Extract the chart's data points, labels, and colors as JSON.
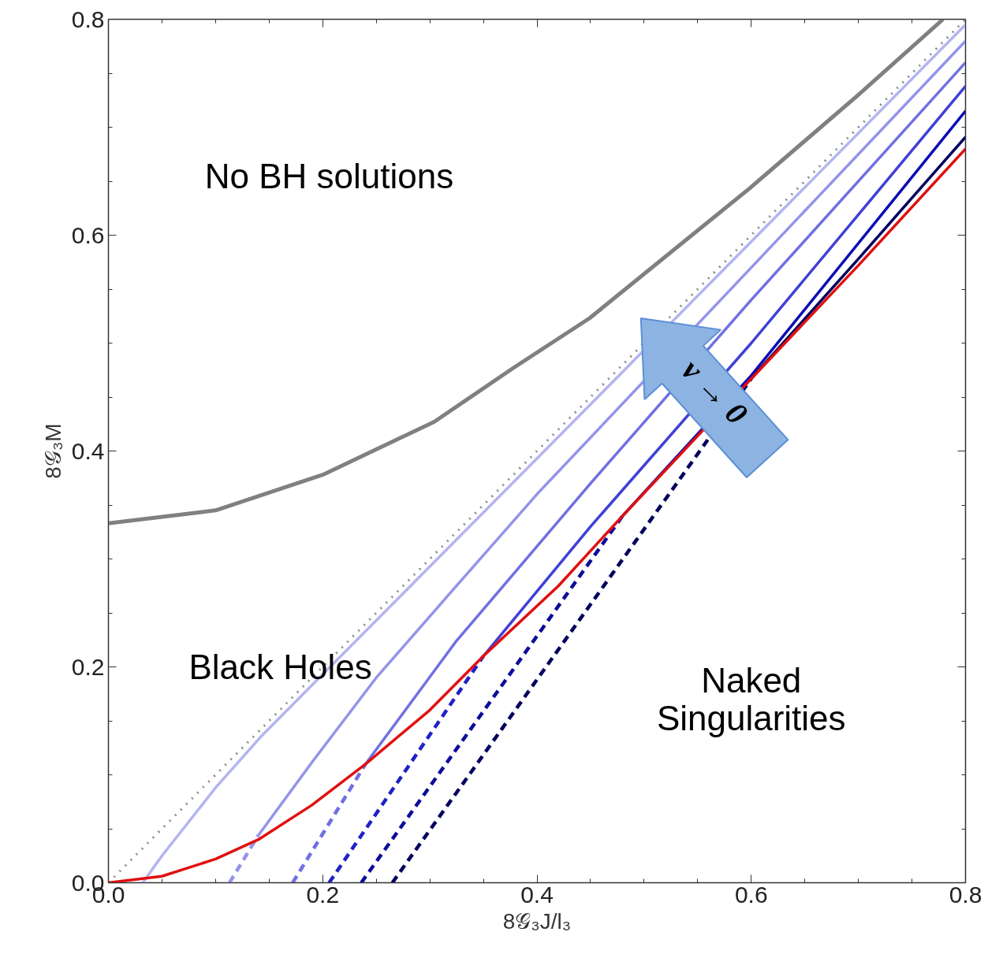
{
  "chart_data": {
    "type": "line",
    "xlabel": "8𝒢₃J/l₃",
    "ylabel": "8𝒢₃M",
    "xlim": [
      0,
      0.8
    ],
    "ylim": [
      0,
      0.8
    ],
    "xticks": [
      {
        "value": 0,
        "label": "0.0"
      },
      {
        "value": 0.05,
        "label": null
      },
      {
        "value": 0.1,
        "label": null
      },
      {
        "value": 0.15,
        "label": null
      },
      {
        "value": 0.2,
        "label": "0.2"
      },
      {
        "value": 0.25,
        "label": null
      },
      {
        "value": 0.3,
        "label": null
      },
      {
        "value": 0.35,
        "label": null
      },
      {
        "value": 0.4,
        "label": "0.4"
      },
      {
        "value": 0.45,
        "label": null
      },
      {
        "value": 0.5,
        "label": null
      },
      {
        "value": 0.55,
        "label": null
      },
      {
        "value": 0.6,
        "label": "0.6"
      },
      {
        "value": 0.65,
        "label": null
      },
      {
        "value": 0.7,
        "label": null
      },
      {
        "value": 0.75,
        "label": null
      },
      {
        "value": 0.8,
        "label": "0.8"
      }
    ],
    "yticks": [
      {
        "value": 0,
        "label": "0.0"
      },
      {
        "value": 0.05,
        "label": null
      },
      {
        "value": 0.1,
        "label": null
      },
      {
        "value": 0.15,
        "label": null
      },
      {
        "value": 0.2,
        "label": "0.2"
      },
      {
        "value": 0.25,
        "label": null
      },
      {
        "value": 0.3,
        "label": null
      },
      {
        "value": 0.35,
        "label": null
      },
      {
        "value": 0.4,
        "label": "0.4"
      },
      {
        "value": 0.45,
        "label": null
      },
      {
        "value": 0.5,
        "label": null
      },
      {
        "value": 0.55,
        "label": null
      },
      {
        "value": 0.6,
        "label": "0.6"
      },
      {
        "value": 0.65,
        "label": null
      },
      {
        "value": 0.7,
        "label": null
      },
      {
        "value": 0.75,
        "label": null
      },
      {
        "value": 0.8,
        "label": "0.8"
      }
    ],
    "marker": "none",
    "series": [
      {
        "color": "#808080",
        "line_style": "solid",
        "x": [
          0,
          0.1,
          0.2,
          0.304,
          0.378,
          0.449,
          0.598,
          0.7,
          0.779
        ],
        "values": [
          0.333,
          0.345,
          0.378,
          0.427,
          0.477,
          0.523,
          0.643,
          0.73,
          0.8
        ]
      },
      {
        "color": "#8c8c8c",
        "line_style": "dotted",
        "x": [
          0,
          0.8
        ],
        "values": [
          0,
          0.8
        ]
      },
      {
        "color": "#b4b4f0",
        "line_style": "solid",
        "x": [
          0.032,
          0.05,
          0.1,
          0.142,
          0.2,
          0.272,
          0.4,
          0.6,
          0.8
        ],
        "values": [
          0,
          0.025,
          0.088,
          0.135,
          0.193,
          0.265,
          0.393,
          0.594,
          0.795
        ]
      },
      {
        "color": "#9494ea",
        "line_style": "solid",
        "x": [
          0.14,
          0.191,
          0.25,
          0.316,
          0.4,
          0.6,
          0.8
        ],
        "values": [
          0.044,
          0.113,
          0.19,
          0.265,
          0.36,
          0.57,
          0.78
        ]
      },
      {
        "color": "#7070e2",
        "line_style": "solid",
        "x": [
          0.24,
          0.324,
          0.45,
          0.6,
          0.8
        ],
        "values": [
          0.11,
          0.223,
          0.37,
          0.54,
          0.76
        ]
      },
      {
        "color": "#4040d6",
        "line_style": "solid",
        "x": [
          0.35,
          0.45,
          0.6,
          0.8
        ],
        "values": [
          0.21,
          0.33,
          0.5,
          0.738
        ]
      },
      {
        "color": "#0c0cb4",
        "line_style": "solid",
        "x": [
          0.48,
          0.6,
          0.8
        ],
        "values": [
          0.34,
          0.47,
          0.715
        ]
      },
      {
        "color": "#00005e",
        "line_style": "solid",
        "x": [
          0.6,
          0.7,
          0.8
        ],
        "values": [
          0.467,
          0.578,
          0.691
        ]
      },
      {
        "color": "#9494ea",
        "line_style": "dashed",
        "x": [
          0.113,
          0.14
        ],
        "values": [
          0,
          0.044
        ]
      },
      {
        "color": "#7070e2",
        "line_style": "dashed",
        "x": [
          0.172,
          0.24
        ],
        "values": [
          0,
          0.11
        ]
      },
      {
        "color": "#2020c8",
        "line_style": "dashed",
        "x": [
          0.206,
          0.35
        ],
        "values": [
          0,
          0.21
        ]
      },
      {
        "color": "#0c0c9a",
        "line_style": "dashed",
        "x": [
          0.236,
          0.48
        ],
        "values": [
          0,
          0.34
        ]
      },
      {
        "color": "#00005e",
        "line_style": "dashed",
        "x": [
          0.265,
          0.6
        ],
        "values": [
          0,
          0.467
        ]
      },
      {
        "color": "#e01010",
        "line_style": "solid",
        "x": [
          0,
          0.05,
          0.1,
          0.14,
          0.19,
          0.24,
          0.3,
          0.35,
          0.42,
          0.48,
          0.6,
          0.7,
          0.8
        ],
        "values": [
          0,
          0.006,
          0.022,
          0.04,
          0.072,
          0.11,
          0.16,
          0.21,
          0.275,
          0.34,
          0.467,
          0.572,
          0.68
        ]
      }
    ],
    "annotations": [
      "No BH solutions",
      "Black Holes",
      "Naked\nSingularities",
      "ν → 0"
    ]
  }
}
